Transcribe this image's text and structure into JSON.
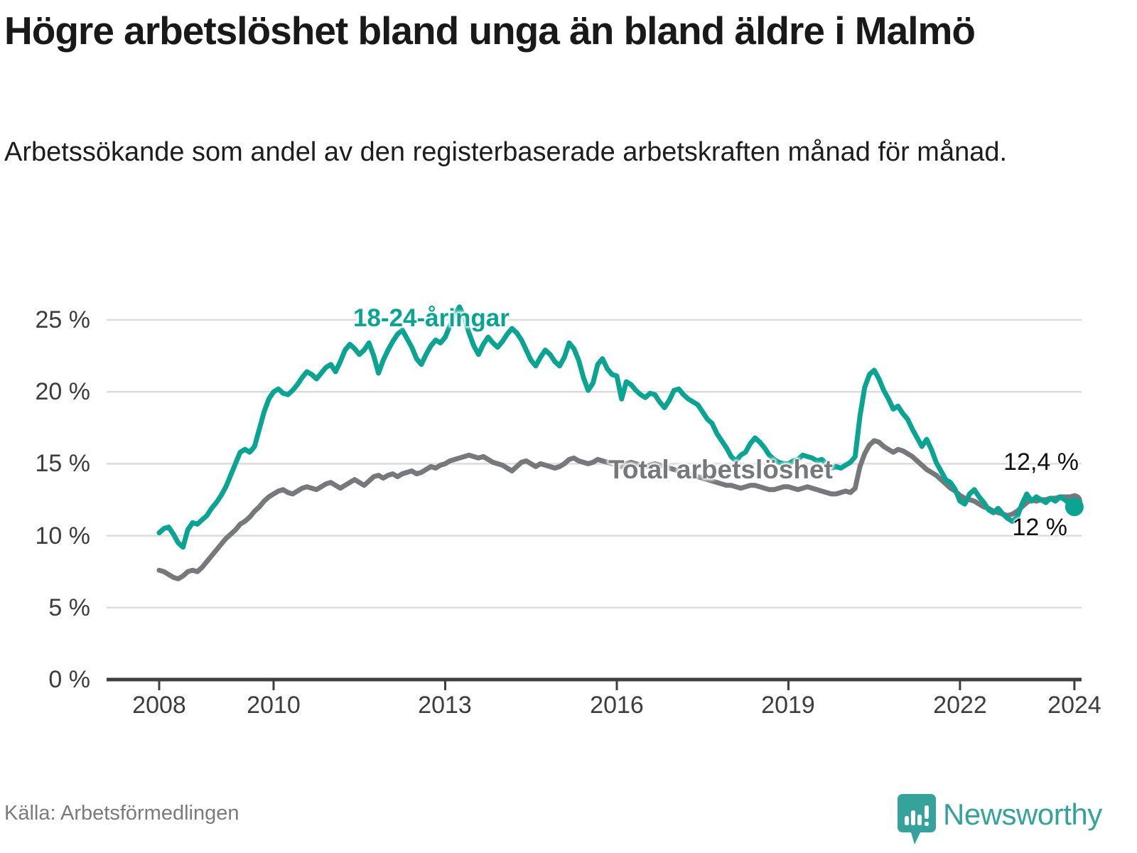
{
  "header": {
    "title": "Högre arbetslöshet bland unga än bland äldre i Malmö",
    "subtitle": "Arbetssökande som andel av den registerbaserade arbetskraften månad för månad."
  },
  "footer": {
    "source": "Källa: Arbetsförmedlingen",
    "brand": "Newsworthy"
  },
  "colors": {
    "young_line": "#0ba492",
    "total_line": "#77787b",
    "axis": "#3f3f3f",
    "gridline": "#dcdcdc",
    "logo_teal": "#35a29b",
    "end_label_text": "#111111"
  },
  "chart_data": {
    "type": "line",
    "unit": "%",
    "x_start": "2008-01",
    "x_end": "2024-01",
    "frequency": "monthly",
    "ylim": [
      0,
      25
    ],
    "grid": true,
    "x_ticks": [
      "2008",
      "2010",
      "2013",
      "2016",
      "2019",
      "2022",
      "2024"
    ],
    "x_tick_years": [
      2008,
      2010,
      2013,
      2016,
      2019,
      2022,
      2024
    ],
    "y_ticks": [
      {
        "value": 0,
        "label": "0 %"
      },
      {
        "value": 5,
        "label": "5 %"
      },
      {
        "value": 10,
        "label": "10 %"
      },
      {
        "value": 15,
        "label": "15 %"
      },
      {
        "value": 20,
        "label": "20 %"
      },
      {
        "value": 25,
        "label": "25 %"
      }
    ],
    "series": [
      {
        "label": "Total arbetslöshet",
        "color_key": "total_line",
        "end_label": "12,4 %",
        "end_value": 12.4,
        "values": [
          7.6,
          7.5,
          7.3,
          7.1,
          7.0,
          7.2,
          7.5,
          7.6,
          7.5,
          7.8,
          8.2,
          8.6,
          9.0,
          9.4,
          9.8,
          10.1,
          10.4,
          10.8,
          11.0,
          11.3,
          11.7,
          12.0,
          12.4,
          12.7,
          12.9,
          13.1,
          13.2,
          13.0,
          12.9,
          13.1,
          13.3,
          13.4,
          13.3,
          13.2,
          13.4,
          13.6,
          13.7,
          13.5,
          13.3,
          13.5,
          13.7,
          13.9,
          13.7,
          13.5,
          13.8,
          14.1,
          14.2,
          14.0,
          14.2,
          14.3,
          14.1,
          14.3,
          14.4,
          14.5,
          14.3,
          14.4,
          14.6,
          14.8,
          14.7,
          14.9,
          15.0,
          15.2,
          15.3,
          15.4,
          15.5,
          15.6,
          15.5,
          15.4,
          15.5,
          15.3,
          15.1,
          15.0,
          14.9,
          14.7,
          14.5,
          14.8,
          15.1,
          15.2,
          15.0,
          14.8,
          15.0,
          14.9,
          14.8,
          14.7,
          14.8,
          15.0,
          15.3,
          15.4,
          15.2,
          15.1,
          15.0,
          15.1,
          15.3,
          15.2,
          15.1,
          15.0,
          14.9,
          14.8,
          15.0,
          15.1,
          15.0,
          14.9,
          14.8,
          14.9,
          15.0,
          14.9,
          14.8,
          14.7,
          14.6,
          14.5,
          14.4,
          14.3,
          14.2,
          14.1,
          14.0,
          13.9,
          13.8,
          13.7,
          13.6,
          13.5,
          13.5,
          13.4,
          13.3,
          13.4,
          13.5,
          13.5,
          13.4,
          13.3,
          13.2,
          13.2,
          13.3,
          13.4,
          13.4,
          13.3,
          13.2,
          13.3,
          13.4,
          13.3,
          13.2,
          13.1,
          13.0,
          12.9,
          12.9,
          13.0,
          13.1,
          13.0,
          13.3,
          14.8,
          15.7,
          16.3,
          16.6,
          16.5,
          16.2,
          16.0,
          15.8,
          16.0,
          15.9,
          15.7,
          15.5,
          15.2,
          14.9,
          14.6,
          14.4,
          14.2,
          13.9,
          13.6,
          13.3,
          13.1,
          12.8,
          12.6,
          12.5,
          12.4,
          12.2,
          12.0,
          11.9,
          11.7,
          11.6,
          11.5,
          11.4,
          11.5,
          11.7,
          12.0,
          12.3,
          12.5,
          12.4,
          12.5,
          12.5,
          12.6,
          12.6,
          12.7,
          12.7,
          12.7,
          12.4
        ]
      },
      {
        "label": "18-24-åringar",
        "color_key": "young_line",
        "end_label": "12 %",
        "end_value": 12.0,
        "values": [
          10.2,
          10.5,
          10.6,
          10.1,
          9.5,
          9.2,
          10.4,
          10.9,
          10.8,
          11.1,
          11.4,
          11.9,
          12.3,
          12.8,
          13.4,
          14.2,
          15.0,
          15.8,
          16.0,
          15.8,
          16.2,
          17.4,
          18.6,
          19.5,
          20.0,
          20.2,
          19.9,
          19.8,
          20.1,
          20.5,
          21.0,
          21.4,
          21.2,
          20.9,
          21.3,
          21.7,
          21.9,
          21.4,
          22.1,
          22.9,
          23.3,
          23.0,
          22.6,
          22.9,
          23.4,
          22.5,
          21.3,
          22.2,
          22.9,
          23.5,
          24.0,
          24.3,
          23.7,
          23.1,
          22.3,
          21.9,
          22.6,
          23.2,
          23.6,
          23.4,
          23.8,
          24.6,
          25.4,
          25.9,
          25.2,
          24.1,
          23.2,
          22.6,
          23.3,
          23.8,
          23.4,
          23.1,
          23.5,
          24.0,
          24.4,
          24.1,
          23.6,
          22.9,
          22.2,
          21.8,
          22.4,
          22.9,
          22.6,
          22.1,
          21.8,
          22.4,
          23.4,
          23.0,
          22.2,
          21.0,
          20.1,
          20.6,
          21.9,
          22.3,
          21.6,
          21.2,
          21.1,
          19.5,
          20.7,
          20.5,
          20.1,
          19.8,
          19.6,
          19.9,
          19.8,
          19.3,
          18.9,
          19.4,
          20.1,
          20.2,
          19.8,
          19.5,
          19.3,
          19.1,
          18.6,
          18.1,
          17.8,
          17.1,
          16.6,
          16.1,
          15.5,
          15.2,
          15.6,
          15.8,
          16.4,
          16.8,
          16.5,
          16.1,
          15.6,
          15.3,
          15.1,
          15.0,
          15.0,
          15.2,
          15.3,
          15.6,
          15.5,
          15.4,
          15.2,
          15.3,
          15.0,
          14.7,
          14.8,
          14.7,
          14.9,
          15.1,
          15.5,
          18.3,
          20.3,
          21.2,
          21.5,
          20.9,
          20.1,
          19.5,
          18.8,
          19.0,
          18.5,
          18.1,
          17.4,
          16.8,
          16.2,
          16.7,
          16.0,
          15.1,
          14.5,
          13.9,
          13.7,
          13.2,
          12.4,
          12.2,
          12.9,
          13.2,
          12.7,
          12.3,
          11.8,
          11.6,
          11.9,
          11.5,
          11.2,
          11.0,
          11.3,
          12.2,
          12.9,
          12.4,
          12.7,
          12.5,
          12.3,
          12.6,
          12.4,
          12.7,
          12.5,
          12.2,
          12.0
        ]
      }
    ]
  }
}
